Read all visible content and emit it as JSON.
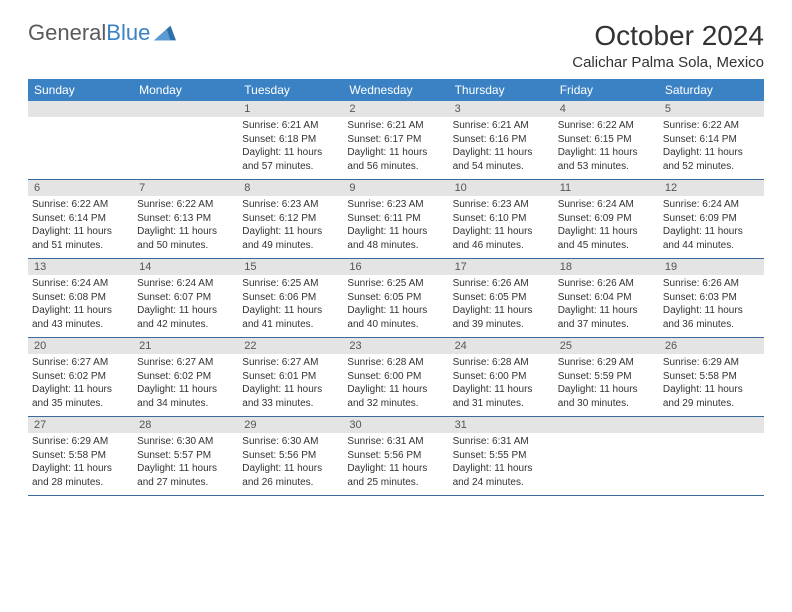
{
  "brand": {
    "part1": "General",
    "part2": "Blue"
  },
  "title": "October 2024",
  "location": "Calichar Palma Sola, Mexico",
  "colors": {
    "header_bg": "#3b82c4",
    "header_fg": "#ffffff",
    "daynum_bg": "#e4e4e4",
    "row_border": "#3b6a9a"
  },
  "weekdays": [
    "Sunday",
    "Monday",
    "Tuesday",
    "Wednesday",
    "Thursday",
    "Friday",
    "Saturday"
  ],
  "weeks": [
    [
      {
        "n": "",
        "sunrise": "",
        "sunset": "",
        "daylight": ""
      },
      {
        "n": "",
        "sunrise": "",
        "sunset": "",
        "daylight": ""
      },
      {
        "n": "1",
        "sunrise": "Sunrise: 6:21 AM",
        "sunset": "Sunset: 6:18 PM",
        "daylight": "Daylight: 11 hours and 57 minutes."
      },
      {
        "n": "2",
        "sunrise": "Sunrise: 6:21 AM",
        "sunset": "Sunset: 6:17 PM",
        "daylight": "Daylight: 11 hours and 56 minutes."
      },
      {
        "n": "3",
        "sunrise": "Sunrise: 6:21 AM",
        "sunset": "Sunset: 6:16 PM",
        "daylight": "Daylight: 11 hours and 54 minutes."
      },
      {
        "n": "4",
        "sunrise": "Sunrise: 6:22 AM",
        "sunset": "Sunset: 6:15 PM",
        "daylight": "Daylight: 11 hours and 53 minutes."
      },
      {
        "n": "5",
        "sunrise": "Sunrise: 6:22 AM",
        "sunset": "Sunset: 6:14 PM",
        "daylight": "Daylight: 11 hours and 52 minutes."
      }
    ],
    [
      {
        "n": "6",
        "sunrise": "Sunrise: 6:22 AM",
        "sunset": "Sunset: 6:14 PM",
        "daylight": "Daylight: 11 hours and 51 minutes."
      },
      {
        "n": "7",
        "sunrise": "Sunrise: 6:22 AM",
        "sunset": "Sunset: 6:13 PM",
        "daylight": "Daylight: 11 hours and 50 minutes."
      },
      {
        "n": "8",
        "sunrise": "Sunrise: 6:23 AM",
        "sunset": "Sunset: 6:12 PM",
        "daylight": "Daylight: 11 hours and 49 minutes."
      },
      {
        "n": "9",
        "sunrise": "Sunrise: 6:23 AM",
        "sunset": "Sunset: 6:11 PM",
        "daylight": "Daylight: 11 hours and 48 minutes."
      },
      {
        "n": "10",
        "sunrise": "Sunrise: 6:23 AM",
        "sunset": "Sunset: 6:10 PM",
        "daylight": "Daylight: 11 hours and 46 minutes."
      },
      {
        "n": "11",
        "sunrise": "Sunrise: 6:24 AM",
        "sunset": "Sunset: 6:09 PM",
        "daylight": "Daylight: 11 hours and 45 minutes."
      },
      {
        "n": "12",
        "sunrise": "Sunrise: 6:24 AM",
        "sunset": "Sunset: 6:09 PM",
        "daylight": "Daylight: 11 hours and 44 minutes."
      }
    ],
    [
      {
        "n": "13",
        "sunrise": "Sunrise: 6:24 AM",
        "sunset": "Sunset: 6:08 PM",
        "daylight": "Daylight: 11 hours and 43 minutes."
      },
      {
        "n": "14",
        "sunrise": "Sunrise: 6:24 AM",
        "sunset": "Sunset: 6:07 PM",
        "daylight": "Daylight: 11 hours and 42 minutes."
      },
      {
        "n": "15",
        "sunrise": "Sunrise: 6:25 AM",
        "sunset": "Sunset: 6:06 PM",
        "daylight": "Daylight: 11 hours and 41 minutes."
      },
      {
        "n": "16",
        "sunrise": "Sunrise: 6:25 AM",
        "sunset": "Sunset: 6:05 PM",
        "daylight": "Daylight: 11 hours and 40 minutes."
      },
      {
        "n": "17",
        "sunrise": "Sunrise: 6:26 AM",
        "sunset": "Sunset: 6:05 PM",
        "daylight": "Daylight: 11 hours and 39 minutes."
      },
      {
        "n": "18",
        "sunrise": "Sunrise: 6:26 AM",
        "sunset": "Sunset: 6:04 PM",
        "daylight": "Daylight: 11 hours and 37 minutes."
      },
      {
        "n": "19",
        "sunrise": "Sunrise: 6:26 AM",
        "sunset": "Sunset: 6:03 PM",
        "daylight": "Daylight: 11 hours and 36 minutes."
      }
    ],
    [
      {
        "n": "20",
        "sunrise": "Sunrise: 6:27 AM",
        "sunset": "Sunset: 6:02 PM",
        "daylight": "Daylight: 11 hours and 35 minutes."
      },
      {
        "n": "21",
        "sunrise": "Sunrise: 6:27 AM",
        "sunset": "Sunset: 6:02 PM",
        "daylight": "Daylight: 11 hours and 34 minutes."
      },
      {
        "n": "22",
        "sunrise": "Sunrise: 6:27 AM",
        "sunset": "Sunset: 6:01 PM",
        "daylight": "Daylight: 11 hours and 33 minutes."
      },
      {
        "n": "23",
        "sunrise": "Sunrise: 6:28 AM",
        "sunset": "Sunset: 6:00 PM",
        "daylight": "Daylight: 11 hours and 32 minutes."
      },
      {
        "n": "24",
        "sunrise": "Sunrise: 6:28 AM",
        "sunset": "Sunset: 6:00 PM",
        "daylight": "Daylight: 11 hours and 31 minutes."
      },
      {
        "n": "25",
        "sunrise": "Sunrise: 6:29 AM",
        "sunset": "Sunset: 5:59 PM",
        "daylight": "Daylight: 11 hours and 30 minutes."
      },
      {
        "n": "26",
        "sunrise": "Sunrise: 6:29 AM",
        "sunset": "Sunset: 5:58 PM",
        "daylight": "Daylight: 11 hours and 29 minutes."
      }
    ],
    [
      {
        "n": "27",
        "sunrise": "Sunrise: 6:29 AM",
        "sunset": "Sunset: 5:58 PM",
        "daylight": "Daylight: 11 hours and 28 minutes."
      },
      {
        "n": "28",
        "sunrise": "Sunrise: 6:30 AM",
        "sunset": "Sunset: 5:57 PM",
        "daylight": "Daylight: 11 hours and 27 minutes."
      },
      {
        "n": "29",
        "sunrise": "Sunrise: 6:30 AM",
        "sunset": "Sunset: 5:56 PM",
        "daylight": "Daylight: 11 hours and 26 minutes."
      },
      {
        "n": "30",
        "sunrise": "Sunrise: 6:31 AM",
        "sunset": "Sunset: 5:56 PM",
        "daylight": "Daylight: 11 hours and 25 minutes."
      },
      {
        "n": "31",
        "sunrise": "Sunrise: 6:31 AM",
        "sunset": "Sunset: 5:55 PM",
        "daylight": "Daylight: 11 hours and 24 minutes."
      },
      {
        "n": "",
        "sunrise": "",
        "sunset": "",
        "daylight": ""
      },
      {
        "n": "",
        "sunrise": "",
        "sunset": "",
        "daylight": ""
      }
    ]
  ]
}
